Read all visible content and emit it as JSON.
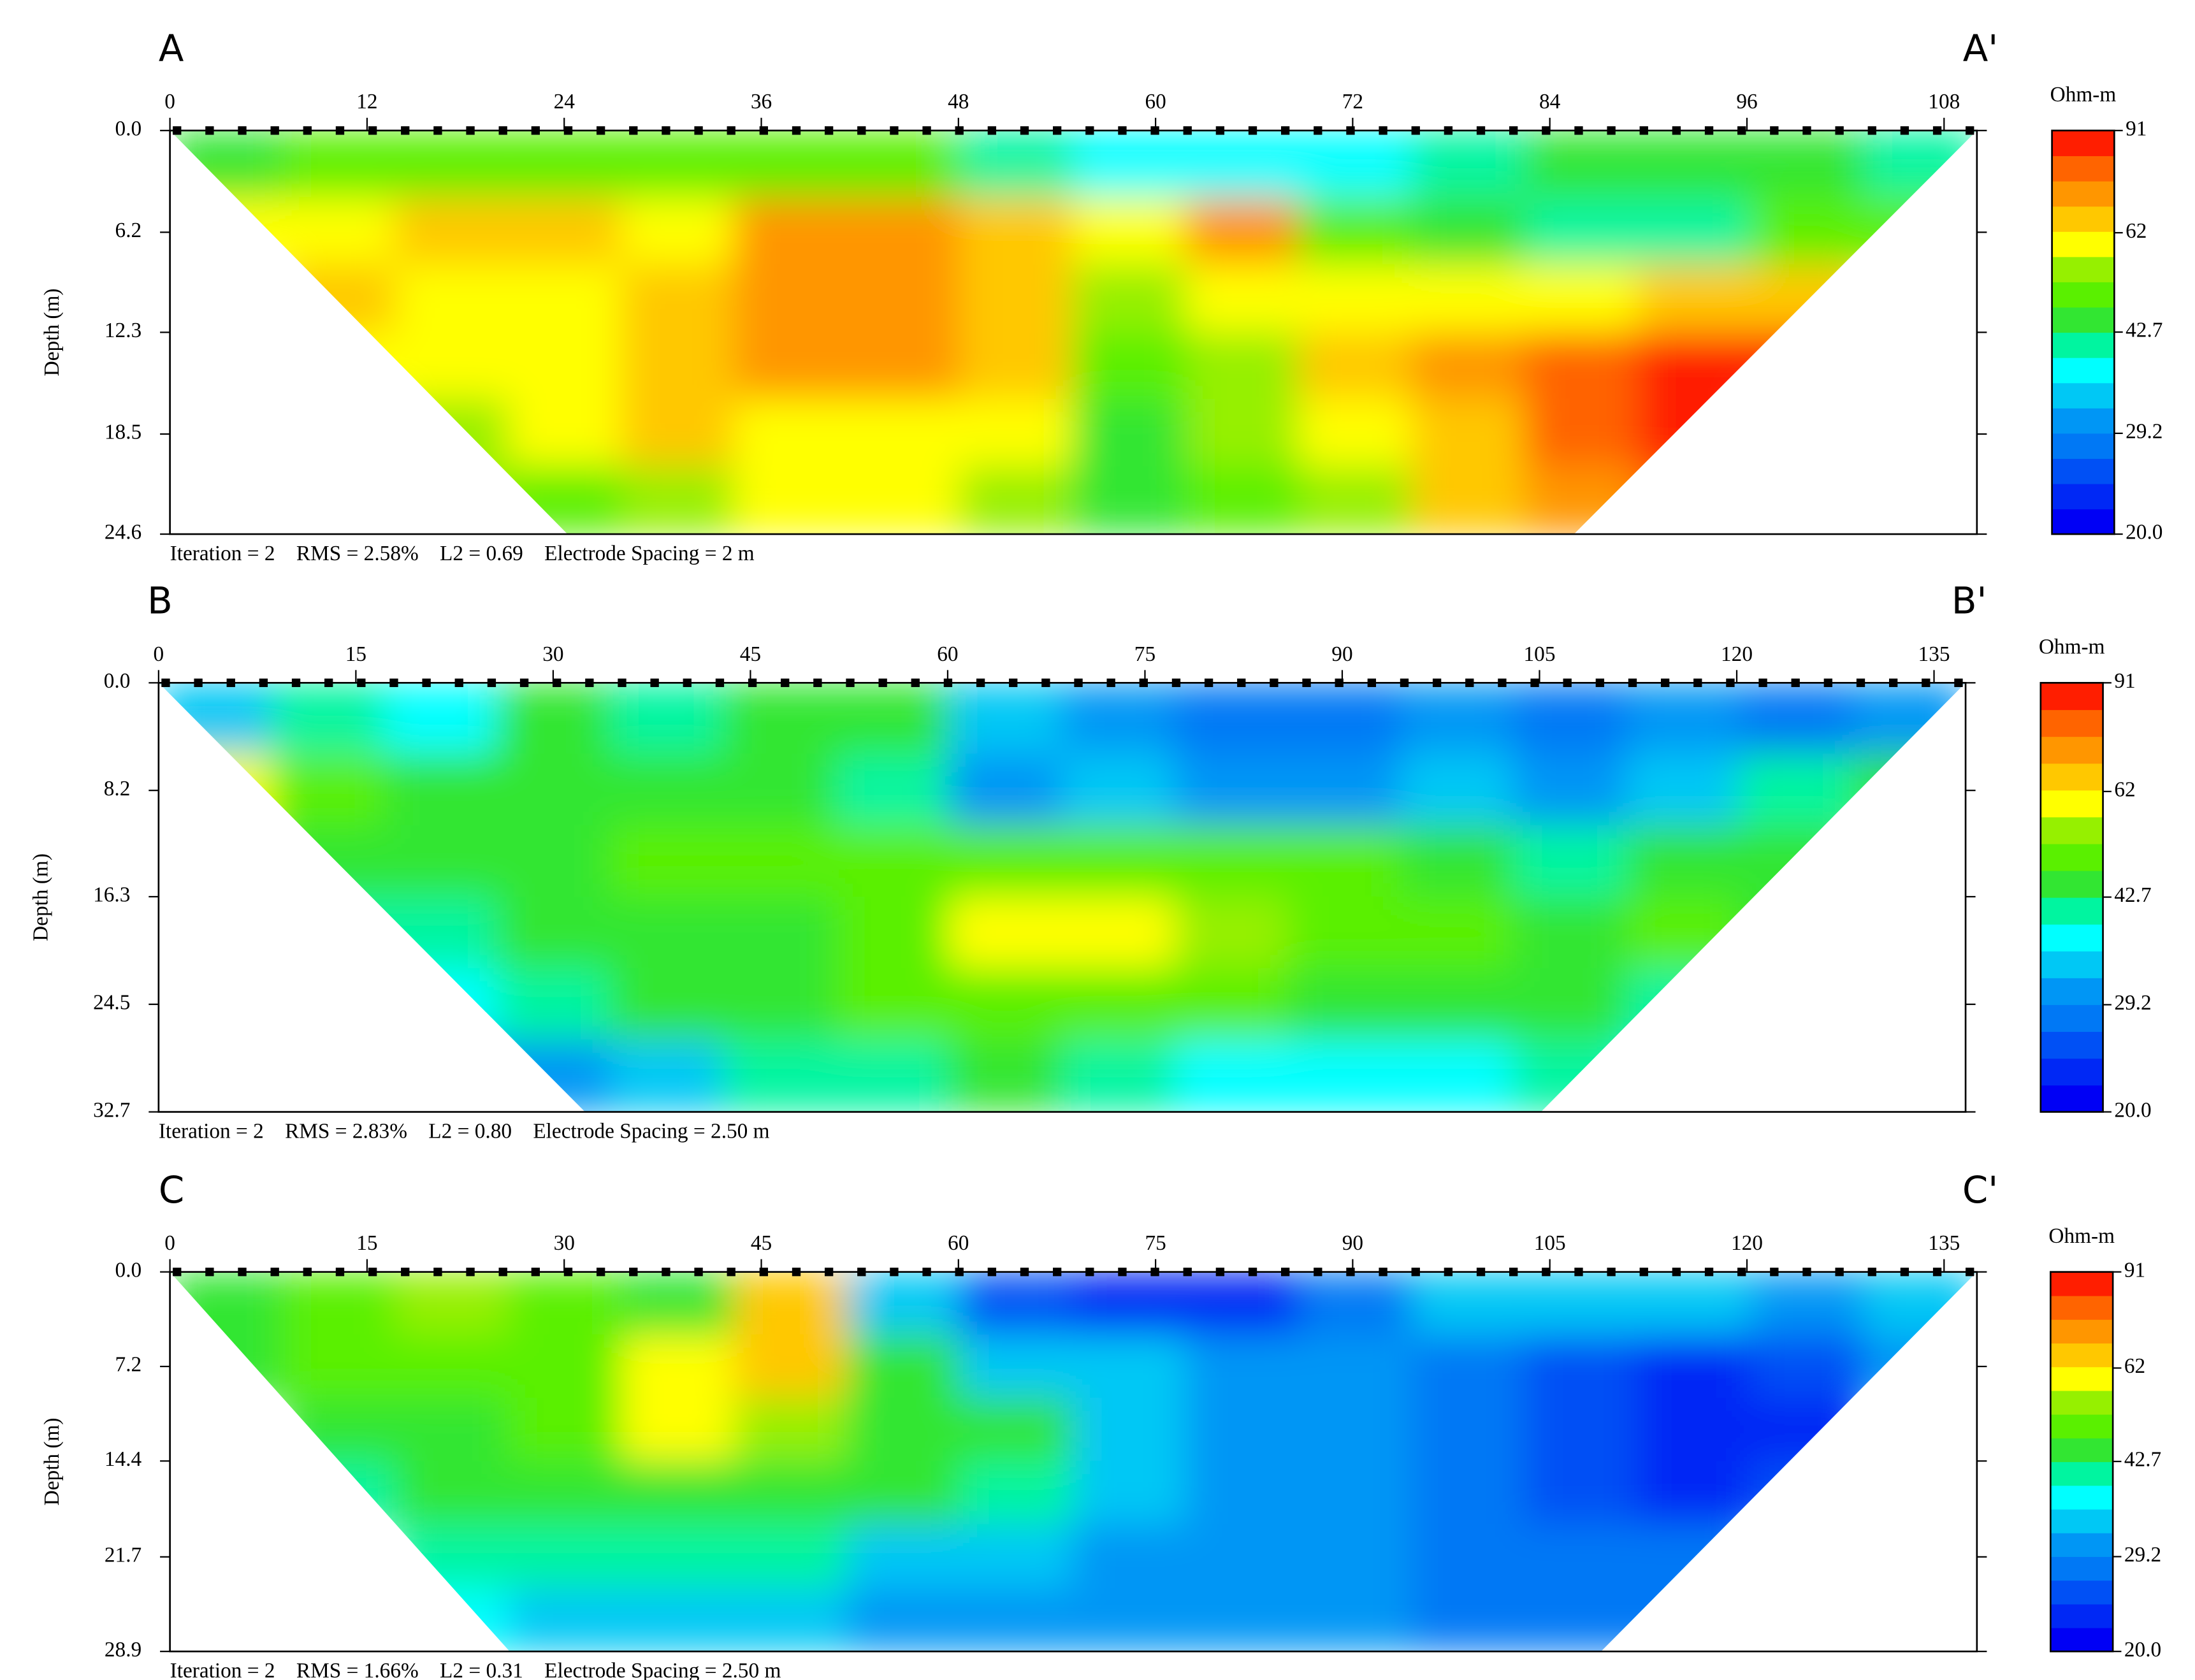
{
  "chart_data": [
    {
      "type": "heatmap",
      "label_left": "A",
      "label_right": "A'",
      "ylabel": "Depth (m)",
      "footer": "Iteration = 2    RMS = 2.58%    L2 = 0.69    Electrode Spacing = 2 m",
      "xlim": [
        0,
        110
      ],
      "xticks": [
        0,
        12,
        24,
        36,
        48,
        60,
        72,
        84,
        96,
        108
      ],
      "ylim": [
        0,
        24.6
      ],
      "yticks": [
        {
          "value": 0,
          "label": "0.0"
        },
        6.2,
        12.3,
        18.5,
        24.6
      ],
      "z": [
        [
          46,
          50,
          47,
          51,
          47,
          48,
          51,
          40,
          36,
          38,
          38,
          40,
          44,
          46,
          45,
          40
        ],
        [
          58,
          58,
          64,
          63,
          60,
          72,
          73,
          68,
          58,
          70,
          51,
          46,
          40,
          40,
          47,
          50
        ],
        [
          null,
          65,
          58,
          58,
          64,
          75,
          75,
          68,
          52,
          58,
          57,
          57,
          58,
          63,
          68,
          null
        ],
        [
          null,
          58,
          58,
          58,
          64,
          70,
          70,
          64,
          50,
          53,
          64,
          70,
          78,
          85,
          88,
          null
        ],
        [
          null,
          null,
          53,
          58,
          63,
          60,
          58,
          57,
          46,
          52,
          59,
          68,
          80,
          84,
          null,
          null
        ],
        [
          null,
          null,
          52,
          51,
          52,
          57,
          57,
          52,
          45,
          47,
          53,
          63,
          70,
          80,
          null,
          null
        ]
      ],
      "colorbar": {
        "title": "Ohm-m",
        "lim": [
          20,
          91
        ],
        "log": true,
        "ticks": [
          {
            "value": 20,
            "label": "20.0"
          },
          29.2,
          42.7,
          62,
          91
        ],
        "colors": [
          "#0000f5",
          "#0028f5",
          "#0050f5",
          "#0078f5",
          "#0096f5",
          "#00c8f5",
          "#00ffff",
          "#00f5a0",
          "#32e632",
          "#5af000",
          "#96f000",
          "#ffff00",
          "#ffc800",
          "#ff9600",
          "#ff6400",
          "#ff1e00"
        ]
      }
    },
    {
      "type": "heatmap",
      "label_left": "B",
      "label_right": "B'",
      "ylabel": "Depth (m)",
      "footer": "Iteration = 2    RMS = 2.83%    L2 = 0.80    Electrode Spacing = 2.50 m",
      "xlim": [
        0,
        137.4
      ],
      "xticks": [
        0,
        15,
        30,
        45,
        60,
        75,
        90,
        105,
        120,
        135
      ],
      "ylim": [
        0,
        32.7
      ],
      "yticks": [
        {
          "value": 0,
          "label": "0.0"
        },
        8.2,
        16.3,
        24.5,
        32.7
      ],
      "z": [
        [
          33,
          40,
          37,
          44,
          40,
          45,
          44,
          34,
          30,
          27,
          27,
          30,
          28,
          30,
          27,
          31
        ],
        [
          58,
          50,
          46,
          44,
          45,
          45,
          40,
          31,
          34,
          31,
          31,
          34,
          31,
          35,
          39,
          44
        ],
        [
          null,
          46,
          46,
          45,
          47,
          50,
          51,
          47,
          50,
          51,
          47,
          45,
          41,
          44,
          46,
          null
        ],
        [
          null,
          40,
          40,
          44,
          45,
          46,
          51,
          57,
          58,
          53,
          50,
          47,
          46,
          50,
          46,
          null
        ],
        [
          null,
          null,
          36,
          40,
          44,
          45,
          47,
          50,
          50,
          47,
          46,
          44,
          43,
          41,
          null,
          null
        ],
        [
          null,
          null,
          32,
          31,
          35,
          39,
          40,
          43,
          40,
          36,
          36,
          37,
          39,
          38,
          null,
          null
        ]
      ],
      "colorbar": {
        "title": "Ohm-m",
        "lim": [
          20,
          91
        ],
        "log": true,
        "ticks": [
          {
            "value": 20,
            "label": "20.0"
          },
          29.2,
          42.7,
          62,
          91
        ],
        "colors": [
          "#0000f5",
          "#0028f5",
          "#0050f5",
          "#0078f5",
          "#0096f5",
          "#00c8f5",
          "#00ffff",
          "#00f5a0",
          "#32e632",
          "#5af000",
          "#96f000",
          "#ffff00",
          "#ffc800",
          "#ff9600",
          "#ff6400",
          "#ff1e00"
        ]
      }
    },
    {
      "type": "heatmap",
      "label_left": "C",
      "label_right": "C'",
      "ylabel": "Depth (m)",
      "footer": "Iteration = 2    RMS = 1.66%    L2 = 0.31    Electrode Spacing = 2.50 m",
      "xlim": [
        0,
        137.5
      ],
      "xticks": [
        0,
        15,
        30,
        45,
        60,
        75,
        90,
        105,
        120,
        135
      ],
      "ylim": [
        0,
        28.9
      ],
      "yticks": [
        {
          "value": 0,
          "label": "0.0"
        },
        7.2,
        14.4,
        21.7,
        28.9
      ],
      "z": [
        [
          46,
          51,
          55,
          47,
          46,
          66,
          35,
          26,
          22,
          24,
          29,
          33,
          34,
          34,
          31,
          35
        ],
        [
          46,
          47,
          50,
          47,
          58,
          65,
          44,
          34,
          34,
          31,
          30,
          27,
          26,
          23,
          25,
          30
        ],
        [
          null,
          44,
          45,
          50,
          57,
          52,
          46,
          44,
          34,
          31,
          31,
          27,
          26,
          23,
          24,
          null
        ],
        [
          null,
          40,
          43,
          45,
          46,
          45,
          44,
          40,
          34,
          31,
          31,
          28,
          26,
          24,
          26,
          null
        ],
        [
          null,
          null,
          39,
          40,
          40,
          39,
          35,
          35,
          31,
          31,
          31,
          28,
          27,
          27,
          null,
          null
        ],
        [
          null,
          null,
          36,
          35,
          35,
          35,
          32,
          30,
          31,
          31,
          31,
          28,
          27,
          28,
          null,
          null
        ]
      ],
      "colorbar": {
        "title": "Ohm-m",
        "lim": [
          20,
          91
        ],
        "log": true,
        "ticks": [
          {
            "value": 20,
            "label": "20.0"
          },
          29.2,
          42.7,
          62,
          91
        ],
        "colors": [
          "#0000f5",
          "#0028f5",
          "#0050f5",
          "#0078f5",
          "#0096f5",
          "#00c8f5",
          "#00ffff",
          "#00f5a0",
          "#32e632",
          "#5af000",
          "#96f000",
          "#ffff00",
          "#ffc800",
          "#ff9600",
          "#ff6400",
          "#ff1e00"
        ]
      }
    }
  ]
}
